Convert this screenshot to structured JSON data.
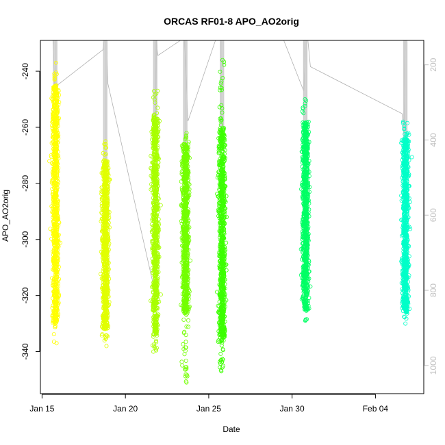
{
  "chart_data": {
    "type": "scatter",
    "title": "ORCAS RF01-8 APO_AO2orig",
    "xlabel": "Date",
    "ylabel": "APO_AO2orig",
    "x_ticks": [
      "Jan 15",
      "Jan 20",
      "Jan 25",
      "Jan 30",
      "Feb 04"
    ],
    "x_tick_days": [
      0,
      5,
      10,
      15,
      20
    ],
    "x_range_days": [
      -0.1,
      22.9
    ],
    "y_range": [
      -355,
      -229
    ],
    "y_ticks": [
      -340,
      -320,
      -300,
      -280,
      -260,
      -240
    ],
    "y2_range": [
      1075,
      135
    ],
    "y2_ticks": [
      200,
      400,
      600,
      800,
      1000
    ],
    "y2_axis_color": "#c0c0c0",
    "grid": false,
    "marker": "open-circle",
    "flights": [
      {
        "day": 0.8,
        "y_min": -337,
        "y_max": -237,
        "dense_min": -330,
        "dense_max": -245,
        "color": "#ffff00"
      },
      {
        "day": 3.8,
        "y_min": -338,
        "y_max": -265,
        "dense_min": -332,
        "dense_max": -272,
        "color": "#e1ff00"
      },
      {
        "day": 6.8,
        "y_min": -340,
        "y_max": -247,
        "dense_min": -334,
        "dense_max": -256,
        "color": "#a8ff00"
      },
      {
        "day": 8.6,
        "y_min": -351,
        "y_max": -262,
        "dense_min": -326,
        "dense_max": -266,
        "color": "#73ff00"
      },
      {
        "day": 10.8,
        "y_min": -347,
        "y_max": -236,
        "dense_min": -337,
        "dense_max": -260,
        "color": "#3cff00"
      },
      {
        "day": 15.8,
        "y_min": -329,
        "y_max": -250,
        "dense_min": -325,
        "dense_max": -258,
        "color": "#00ff64"
      },
      {
        "day": 21.8,
        "y_min": -330,
        "y_max": -258,
        "dense_min": -326,
        "dense_max": -264,
        "color": "#00ffc8"
      }
    ],
    "altitude_track": [
      {
        "day": 0.65,
        "alt": 135
      },
      {
        "day": 0.75,
        "alt": 260
      },
      {
        "day": 3.65,
        "alt": 160
      },
      {
        "day": 3.72,
        "alt": 135
      },
      {
        "day": 3.88,
        "alt": 135
      },
      {
        "day": 3.95,
        "alt": 250
      },
      {
        "day": 6.75,
        "alt": 800
      },
      {
        "day": 6.85,
        "alt": 135
      },
      {
        "day": 6.95,
        "alt": 175
      },
      {
        "day": 8.3,
        "alt": 135
      },
      {
        "day": 8.55,
        "alt": 135
      },
      {
        "day": 8.75,
        "alt": 350
      },
      {
        "day": 10.4,
        "alt": 135
      },
      {
        "day": 10.7,
        "alt": 135
      },
      {
        "day": 10.9,
        "alt": 135
      },
      {
        "day": 14.5,
        "alt": 135
      },
      {
        "day": 15.7,
        "alt": 270
      },
      {
        "day": 15.8,
        "alt": 135
      },
      {
        "day": 15.95,
        "alt": 135
      },
      {
        "day": 16.1,
        "alt": 205
      },
      {
        "day": 21.6,
        "alt": 330
      },
      {
        "day": 21.7,
        "alt": 380
      },
      {
        "day": 21.8,
        "alt": 135
      },
      {
        "day": 21.95,
        "alt": 135
      }
    ]
  }
}
